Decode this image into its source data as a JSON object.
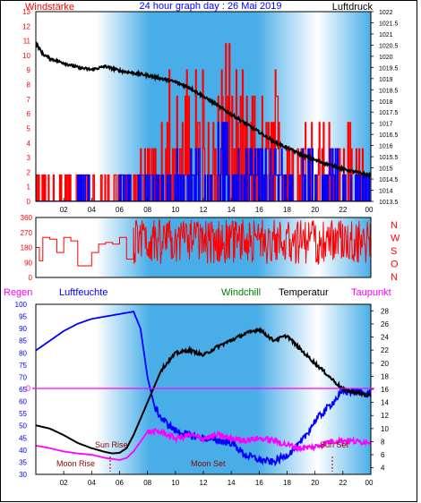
{
  "header": {
    "left_label": "Windstärke",
    "title": "24 hour graph day : 26 Mai 2019",
    "right_label": "Luftdruck"
  },
  "dir_labels": [
    "N",
    "W",
    "S",
    "O",
    "N"
  ],
  "legend": {
    "regen": "Regen",
    "luftfeuchte": "Luftfeuchte",
    "windchill": "Windchill",
    "temperatur": "Temperatur",
    "taupunkt": "Taupunkt"
  },
  "annotations": {
    "sun_rise": "Sun Rise",
    "sun_set": "Sun Set",
    "moon_rise": "Moon Rise",
    "moon_set": "Moon Set",
    "zero_label": "0"
  },
  "colors": {
    "wind_gust": "#ff0000",
    "wind_avg": "#0000ff",
    "pressure": "#000000",
    "direction": "#ff0000",
    "humidity": "#0000ff",
    "temperature": "#000000",
    "dewpoint": "#ff00ff",
    "rain": "#ff00ff",
    "bg_light": "#ffffff",
    "bg_dark": "#49aee8"
  },
  "chart_data": [
    {
      "type": "bar",
      "name": "wind",
      "x_ticks": [
        "02",
        "04",
        "06",
        "08",
        "10",
        "12",
        "14",
        "16",
        "18",
        "20",
        "22",
        "00"
      ],
      "left_axis": {
        "label": "Windstärke",
        "ticks": [
          0,
          1,
          2,
          3,
          4,
          5,
          6,
          7,
          8,
          9,
          10,
          11,
          12,
          13
        ],
        "ylim": [
          0,
          13
        ]
      },
      "right_axis": {
        "label": "Luftdruck",
        "ticks": [
          1013.5,
          1014,
          1014.5,
          1015,
          1015.5,
          1016,
          1016.5,
          1017,
          1017.5,
          1018,
          1018.5,
          1019,
          1019.5,
          1020,
          1020.5,
          1021,
          1021.5,
          1022
        ],
        "ylim": [
          1013.5,
          1022
        ]
      },
      "gust_hourly_max": [
        1.8,
        1.8,
        1.8,
        1.8,
        1.8,
        1.8,
        1.8,
        3.6,
        3.6,
        10.8,
        9,
        9,
        10.8,
        13,
        9,
        7.2,
        7.2,
        9,
        7.2,
        7.2,
        5.4,
        5.4,
        5.4,
        3.6
      ],
      "avg_hourly_max": [
        0,
        0,
        0,
        1.8,
        0,
        0,
        1.8,
        1.8,
        1.8,
        1.8,
        3.6,
        3.6,
        1.8,
        5.4,
        3.6,
        3.6,
        3.6,
        3.6,
        1.8,
        3.6,
        1.8,
        3.6,
        1.8,
        1.8
      ],
      "pressure": {
        "x": [
          0,
          0.5,
          1,
          2,
          3,
          4,
          5,
          6,
          7,
          8,
          9,
          10,
          11,
          12,
          13,
          14,
          15,
          16,
          17,
          18,
          19,
          20,
          21,
          22,
          23,
          24
        ],
        "y": [
          1020.6,
          1020.1,
          1019.9,
          1019.7,
          1019.5,
          1019.4,
          1019.55,
          1019.35,
          1019.25,
          1019.15,
          1019.0,
          1018.85,
          1018.6,
          1018.2,
          1017.8,
          1017.4,
          1017.0,
          1016.6,
          1016.2,
          1015.9,
          1015.6,
          1015.35,
          1015.15,
          1014.95,
          1014.8,
          1014.65
        ]
      }
    },
    {
      "type": "line",
      "name": "wind-direction",
      "y_ticks": [
        0,
        90,
        180,
        270,
        360
      ],
      "ylim": [
        0,
        360
      ],
      "y_right_labels": [
        "N",
        "W",
        "S",
        "O",
        "N"
      ],
      "x": [
        0,
        0.25,
        0.5,
        1,
        1.5,
        2,
        2.5,
        3,
        3.5,
        4,
        4.5,
        5,
        5.5,
        6,
        6.5,
        7
      ],
      "y": [
        180,
        100,
        240,
        230,
        150,
        240,
        220,
        70,
        70,
        150,
        200,
        210,
        200,
        240,
        110,
        300
      ]
    },
    {
      "type": "line",
      "name": "climate",
      "x_ticks": [
        "02",
        "04",
        "06",
        "08",
        "10",
        "12",
        "14",
        "16",
        "18",
        "20",
        "22",
        "00"
      ],
      "left_axis": {
        "label": "Luftfeuchte",
        "ticks": [
          30,
          35,
          40,
          45,
          50,
          55,
          60,
          65,
          70,
          75,
          80,
          85,
          90,
          95,
          100
        ],
        "ylim": [
          30,
          100
        ]
      },
      "right_axis": {
        "label": "Temperatur",
        "ticks": [
          4,
          6,
          8,
          10,
          12,
          14,
          16,
          18,
          20,
          22,
          24,
          26,
          28
        ],
        "ylim": [
          3,
          29
        ]
      },
      "temperature": {
        "x": [
          0,
          1,
          2,
          3,
          4,
          5,
          5.5,
          6,
          6.5,
          7,
          7.5,
          8,
          8.5,
          9,
          10,
          11,
          12,
          13,
          14,
          15,
          16,
          17,
          18,
          19,
          20,
          21,
          22,
          23,
          24
        ],
        "y": [
          10.5,
          10,
          9,
          7.8,
          7,
          6.4,
          6.2,
          6.3,
          7,
          9,
          11.5,
          14,
          16.5,
          19,
          21.5,
          22,
          21.2,
          22.5,
          23.5,
          24.5,
          25.2,
          23.5,
          24.2,
          22,
          20,
          18,
          16,
          15.5,
          15
        ]
      },
      "humidity": {
        "x": [
          0,
          1,
          2,
          3,
          4,
          5,
          6,
          7,
          7.5,
          8,
          8.5,
          9,
          10,
          11,
          12,
          13,
          14,
          15,
          16,
          17,
          18,
          19,
          20,
          21,
          22,
          23,
          24
        ],
        "y": [
          81,
          85,
          89,
          92,
          94,
          95,
          96,
          97,
          90,
          70,
          58,
          53,
          48,
          46,
          45,
          44,
          43,
          38,
          36,
          35,
          38,
          43,
          52,
          58,
          64,
          64,
          63
        ]
      },
      "dewpoint": {
        "x": [
          0,
          1,
          2,
          3,
          4,
          5,
          6,
          6.5,
          7,
          7.5,
          8,
          9,
          10,
          11,
          12,
          13,
          14,
          15,
          16,
          17,
          18,
          19,
          20,
          21,
          22,
          23,
          24
        ],
        "y": [
          7.4,
          7,
          6.5,
          6.2,
          6,
          5.5,
          5.2,
          5.5,
          6.5,
          8,
          9.5,
          9.5,
          8.5,
          9,
          8.5,
          9,
          8.5,
          8.2,
          8.5,
          8.2,
          7.5,
          7,
          7.2,
          8,
          8.2,
          8,
          8
        ]
      }
    }
  ]
}
